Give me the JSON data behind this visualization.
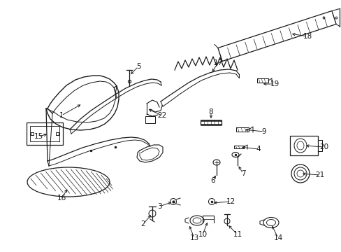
{
  "bg_color": "#ffffff",
  "line_color": "#1a1a1a",
  "font_size": 7.5,
  "line_width": 0.9,
  "figsize": [
    4.89,
    3.6
  ],
  "dpi": 100
}
